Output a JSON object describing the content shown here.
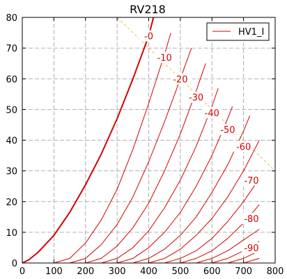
{
  "chart_data": {
    "type": "line",
    "title": "RV218",
    "xlabel": "",
    "ylabel": "",
    "xlim": [
      0,
      800
    ],
    "ylim": [
      0,
      80
    ],
    "xticks": [
      0,
      100,
      200,
      300,
      400,
      500,
      600,
      700,
      800
    ],
    "yticks": [
      0,
      10,
      20,
      30,
      40,
      50,
      60,
      70,
      80
    ],
    "grid": true,
    "legend": {
      "placement": "top-right",
      "entries": [
        "HV1_I"
      ]
    },
    "colors": {
      "series": "#d40000",
      "load_line": "#f2c04a",
      "grid": "#9a9a9a"
    },
    "series": [
      {
        "label": "-0",
        "x": [
          0,
          20,
          50,
          100,
          150,
          200,
          250,
          300,
          350,
          400,
          415
        ],
        "y": [
          0,
          1,
          3.5,
          9,
          16.5,
          25.5,
          35.5,
          47,
          60,
          74,
          80
        ]
      },
      {
        "label": "-10",
        "x": [
          100,
          150,
          200,
          250,
          300,
          350,
          400,
          450,
          470
        ],
        "y": [
          0,
          1.5,
          6.5,
          14,
          24,
          37,
          52,
          68,
          75
        ]
      },
      {
        "label": "-20",
        "x": [
          150,
          200,
          250,
          300,
          350,
          400,
          450,
          500,
          535
        ],
        "y": [
          0,
          1.5,
          6,
          12.5,
          21.5,
          33,
          46,
          60,
          70
        ]
      },
      {
        "label": "-30",
        "x": [
          200,
          250,
          300,
          350,
          400,
          450,
          500,
          550,
          580
        ],
        "y": [
          0,
          1.5,
          5.5,
          11.5,
          19.5,
          30,
          42,
          56,
          65
        ]
      },
      {
        "label": "-40",
        "x": [
          250,
          300,
          350,
          400,
          450,
          500,
          550,
          600,
          620
        ],
        "y": [
          0,
          1.5,
          5,
          10.5,
          18,
          27,
          38,
          51,
          57
        ]
      },
      {
        "label": "-50",
        "x": [
          300,
          350,
          400,
          450,
          500,
          550,
          600,
          650,
          665
        ],
        "y": [
          0,
          1.5,
          5,
          10,
          16.5,
          25,
          35,
          47,
          51
        ]
      },
      {
        "label": "-60",
        "x": [
          350,
          400,
          450,
          500,
          550,
          600,
          650,
          700,
          720
        ],
        "y": [
          0,
          1.5,
          4.5,
          9,
          15,
          23,
          32,
          43,
          48
        ]
      },
      {
        "label": "-70",
        "x": [
          400,
          450,
          500,
          550,
          600,
          650,
          700,
          750
        ],
        "y": [
          0,
          1.5,
          4.5,
          9,
          14.5,
          21.5,
          30,
          40
        ]
      },
      {
        "label": "-80",
        "x": [
          450,
          500,
          550,
          600,
          650,
          700,
          750
        ],
        "y": [
          0,
          1.5,
          4,
          8,
          13.5,
          20,
          27.5
        ]
      },
      {
        "label": "-90",
        "x": [
          500,
          550,
          600,
          650,
          700,
          750
        ],
        "y": [
          0,
          1.5,
          4,
          8,
          13,
          19
        ]
      },
      {
        "label": "",
        "x": [
          550,
          600,
          650,
          700,
          750
        ],
        "y": [
          0,
          1.5,
          4,
          7.5,
          11
        ]
      },
      {
        "label": "",
        "x": [
          600,
          650,
          700,
          750
        ],
        "y": [
          0,
          1.5,
          4,
          7
        ]
      },
      {
        "label": "",
        "x": [
          650,
          700,
          750
        ],
        "y": [
          0,
          1.5,
          4
        ]
      },
      {
        "label": "",
        "x": [
          700,
          750
        ],
        "y": [
          0,
          1.5
        ]
      }
    ],
    "curve_label_positions": [
      {
        "label": "-0",
        "x": 400,
        "y": 74
      },
      {
        "label": "-10",
        "x": 450,
        "y": 67
      },
      {
        "label": "-20",
        "x": 500,
        "y": 60
      },
      {
        "label": "-30",
        "x": 550,
        "y": 54
      },
      {
        "label": "-40",
        "x": 600,
        "y": 49
      },
      {
        "label": "-50",
        "x": 650,
        "y": 43.5
      },
      {
        "label": "-60",
        "x": 700,
        "y": 38
      },
      {
        "label": "-70",
        "x": 725,
        "y": 27
      },
      {
        "label": "-80",
        "x": 725,
        "y": 14.5
      },
      {
        "label": "-90",
        "x": 725,
        "y": 5
      }
    ],
    "load_line": {
      "x": [
        300,
        800
      ],
      "y": [
        80,
        30
      ]
    }
  }
}
